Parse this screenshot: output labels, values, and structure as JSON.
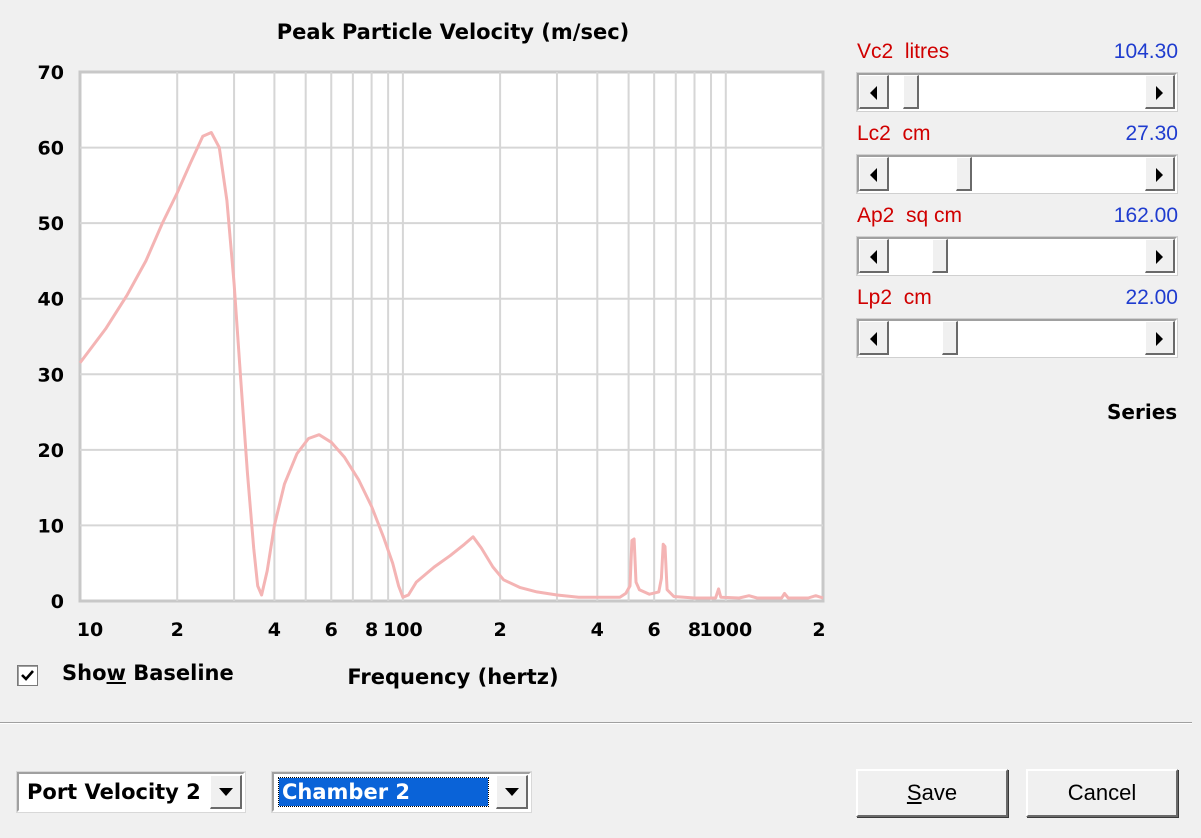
{
  "chart_data": {
    "type": "line",
    "title": "Peak Particle Velocity (m/sec)",
    "xlabel": "Frequency (hertz)",
    "ylabel": "",
    "x_scale": "log",
    "xlim": [
      10,
      2000
    ],
    "ylim": [
      0,
      70
    ],
    "grid": true,
    "y_ticks": [
      0,
      10,
      20,
      30,
      40,
      50,
      60,
      70
    ],
    "x_tick_labels": [
      {
        "value": 10,
        "label": "10"
      },
      {
        "value": 20,
        "label": "2"
      },
      {
        "value": 40,
        "label": "4"
      },
      {
        "value": 60,
        "label": "6"
      },
      {
        "value": 80,
        "label": "8"
      },
      {
        "value": 100,
        "label": "100"
      },
      {
        "value": 200,
        "label": "2"
      },
      {
        "value": 400,
        "label": "4"
      },
      {
        "value": 600,
        "label": "6"
      },
      {
        "value": 800,
        "label": "8"
      },
      {
        "value": 1000,
        "label": "1000"
      },
      {
        "value": 2000,
        "label": "2"
      }
    ],
    "series": [
      {
        "color": "#f4b4b4",
        "points": [
          [
            10,
            31.5
          ],
          [
            12,
            36
          ],
          [
            14,
            40.5
          ],
          [
            16,
            45
          ],
          [
            18,
            50
          ],
          [
            20,
            54
          ],
          [
            22,
            58
          ],
          [
            24,
            61.5
          ],
          [
            25.5,
            62
          ],
          [
            27,
            60
          ],
          [
            28.5,
            53
          ],
          [
            30,
            42
          ],
          [
            31.5,
            29
          ],
          [
            33,
            17
          ],
          [
            34.5,
            7
          ],
          [
            35.5,
            2
          ],
          [
            36.5,
            0.8
          ],
          [
            38,
            4
          ],
          [
            40,
            10
          ],
          [
            43,
            15.5
          ],
          [
            47,
            19.5
          ],
          [
            51,
            21.5
          ],
          [
            55,
            22
          ],
          [
            60,
            21
          ],
          [
            66,
            19
          ],
          [
            73,
            16
          ],
          [
            80,
            12.5
          ],
          [
            87,
            8.5
          ],
          [
            93,
            5
          ],
          [
            97,
            2
          ],
          [
            100,
            0.5
          ],
          [
            104,
            0.8
          ],
          [
            110,
            2.5
          ],
          [
            125,
            4.5
          ],
          [
            140,
            6
          ],
          [
            155,
            7.5
          ],
          [
            165,
            8.5
          ],
          [
            175,
            7
          ],
          [
            190,
            4.5
          ],
          [
            205,
            2.8
          ],
          [
            230,
            1.8
          ],
          [
            260,
            1.2
          ],
          [
            300,
            0.8
          ],
          [
            350,
            0.5
          ],
          [
            420,
            0.5
          ],
          [
            470,
            0.5
          ],
          [
            490,
            1
          ],
          [
            505,
            2
          ],
          [
            512,
            8
          ],
          [
            520,
            8.2
          ],
          [
            527,
            2.5
          ],
          [
            540,
            1.5
          ],
          [
            580,
            0.9
          ],
          [
            620,
            1.2
          ],
          [
            632,
            3
          ],
          [
            640,
            7.5
          ],
          [
            648,
            7.2
          ],
          [
            658,
            1.5
          ],
          [
            690,
            0.6
          ],
          [
            800,
            0.4
          ],
          [
            930,
            0.4
          ],
          [
            950,
            1.6
          ],
          [
            965,
            0.5
          ],
          [
            1100,
            0.4
          ],
          [
            1180,
            0.7
          ],
          [
            1250,
            0.4
          ],
          [
            1490,
            0.4
          ],
          [
            1520,
            1
          ],
          [
            1560,
            0.4
          ],
          [
            1800,
            0.4
          ],
          [
            1900,
            0.7
          ],
          [
            2000,
            0.4
          ]
        ]
      }
    ]
  },
  "show_baseline": {
    "prefix": "Sho",
    "hotkey": "w",
    "suffix": " Baseline",
    "checked": true
  },
  "params": [
    {
      "name": "Vc2  litres",
      "value": "104.30",
      "thumb_fraction": 0.06
    },
    {
      "name": "Lc2  cm",
      "value": "27.30",
      "thumb_fraction": 0.28
    },
    {
      "name": "Ap2  sq cm",
      "value": "162.00",
      "thumb_fraction": 0.18
    },
    {
      "name": "Lp2  cm",
      "value": "22.00",
      "thumb_fraction": 0.22
    }
  ],
  "series_label": "Series",
  "combo_port": {
    "value": "Port Velocity 2"
  },
  "combo_chamber": {
    "value": "Chamber 2"
  },
  "save_button": {
    "hotkey": "S",
    "rest": "ave"
  },
  "cancel_button": {
    "label": "Cancel"
  },
  "colors": {
    "curve": "#f4b4b4",
    "param_name": "#d00000",
    "param_value": "#1f3ccf",
    "selection": "#0a63d8"
  }
}
